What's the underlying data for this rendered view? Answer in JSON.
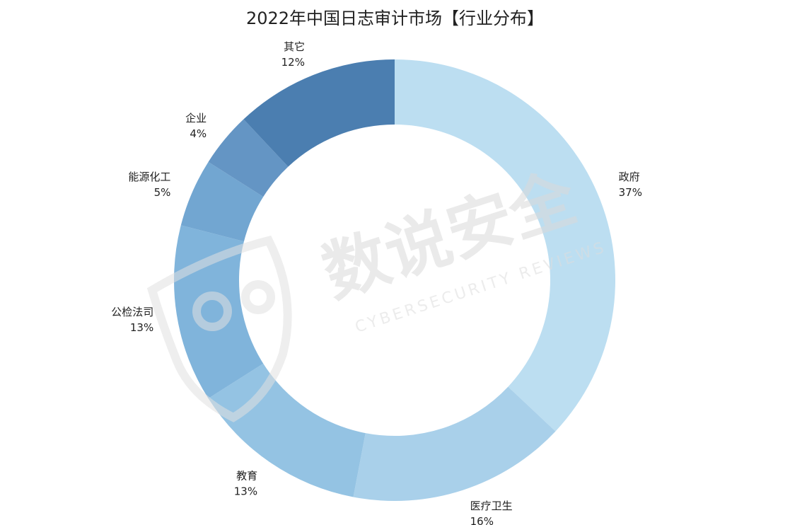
{
  "chart_data": {
    "type": "pie",
    "title": "2022年中国日志审计市场【行业分布】",
    "donut": true,
    "start_angle_deg": 0,
    "direction": "clockwise",
    "slices": [
      {
        "label": "政府",
        "value": 37,
        "value_label": "37%",
        "color": "#bcdef1"
      },
      {
        "label": "医疗卫生",
        "value": 16,
        "value_label": "16%",
        "color": "#a9d0ea"
      },
      {
        "label": "教育",
        "value": 13,
        "value_label": "13%",
        "color": "#94c3e3"
      },
      {
        "label": "公检法司",
        "value": 13,
        "value_label": "13%",
        "color": "#80b4db"
      },
      {
        "label": "能源化工",
        "value": 5,
        "value_label": "5%",
        "color": "#72a6d1"
      },
      {
        "label": "企业",
        "value": 4,
        "value_label": "4%",
        "color": "#6495c4"
      },
      {
        "label": "其它",
        "value": 12,
        "value_label": "12%",
        "color": "#4b7eb0"
      }
    ]
  },
  "watermark": {
    "brand": "数说安全",
    "tagline": "CYBERSECURITY REVIEWS",
    "logo_icon": "owl-logo-icon"
  }
}
